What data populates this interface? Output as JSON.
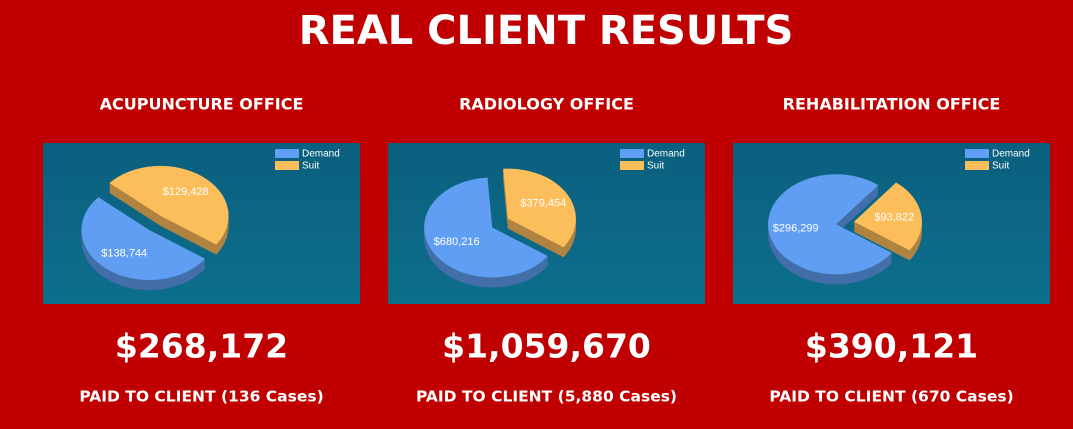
{
  "header": {
    "title": "REAL CLIENT RESULTS"
  },
  "chart_data": [
    {
      "type": "pie",
      "title": "ACUPUNCTURE OFFICE",
      "categories": [
        "Demand",
        "Suit"
      ],
      "values": [
        138744,
        129428
      ],
      "value_labels": [
        "$138,744",
        "$129,428"
      ],
      "colors": [
        "#5f9ef2",
        "#fcbd5b"
      ],
      "legend": "top-right",
      "annotations": [
        "$268,172",
        "PAID TO CLIENT (136 Cases)"
      ]
    },
    {
      "type": "pie",
      "title": "RADIOLOGY OFFICE",
      "categories": [
        "Demand",
        "Suit"
      ],
      "values": [
        680216,
        379454
      ],
      "value_labels": [
        "$680,216",
        "$379,454"
      ],
      "colors": [
        "#5f9ef2",
        "#fcbd5b"
      ],
      "legend": "top-right",
      "annotations": [
        "$1,059,670",
        "PAID TO CLIENT (5,880 Cases)"
      ]
    },
    {
      "type": "pie",
      "title": "REHABILITATION OFFICE",
      "categories": [
        "Demand",
        "Suit"
      ],
      "values": [
        296299,
        93822
      ],
      "value_labels": [
        "$296,299",
        "$93,822"
      ],
      "colors": [
        "#5f9ef2",
        "#fcbd5b"
      ],
      "legend": "top-right",
      "annotations": [
        "$390,121",
        "PAID TO CLIENT (670 Cases)"
      ]
    }
  ]
}
